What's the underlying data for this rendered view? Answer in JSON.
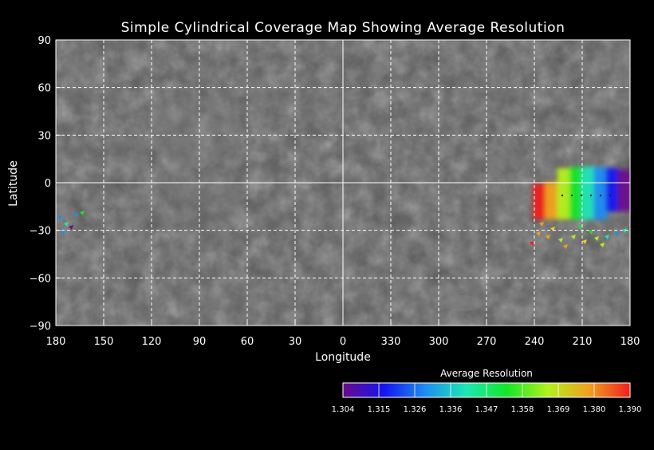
{
  "title": "Simple Cylindrical Coverage Map Showing Average Resolution",
  "axes": {
    "x_label": "Longitude",
    "y_label": "Latitude",
    "x_ticks": [
      "180",
      "150",
      "120",
      "90",
      "60",
      "30",
      "0",
      "330",
      "300",
      "270",
      "240",
      "210",
      "180"
    ],
    "y_ticks": [
      "90",
      "60",
      "30",
      "0",
      "−30",
      "−60",
      "−90"
    ]
  },
  "colorbar": {
    "title": "Average Resolution",
    "ticks": [
      "1.304",
      "1.315",
      "1.326",
      "1.336",
      "1.347",
      "1.358",
      "1.369",
      "1.380",
      "1.390"
    ],
    "colors": [
      "#6a0a8c",
      "#1414f0",
      "#1e8cf0",
      "#1ee6b4",
      "#14e628",
      "#b4f01e",
      "#f0a01e",
      "#f01e1e"
    ]
  },
  "map": {
    "background_color": "#5a5a5a",
    "grid_color": "#ffffff"
  }
}
